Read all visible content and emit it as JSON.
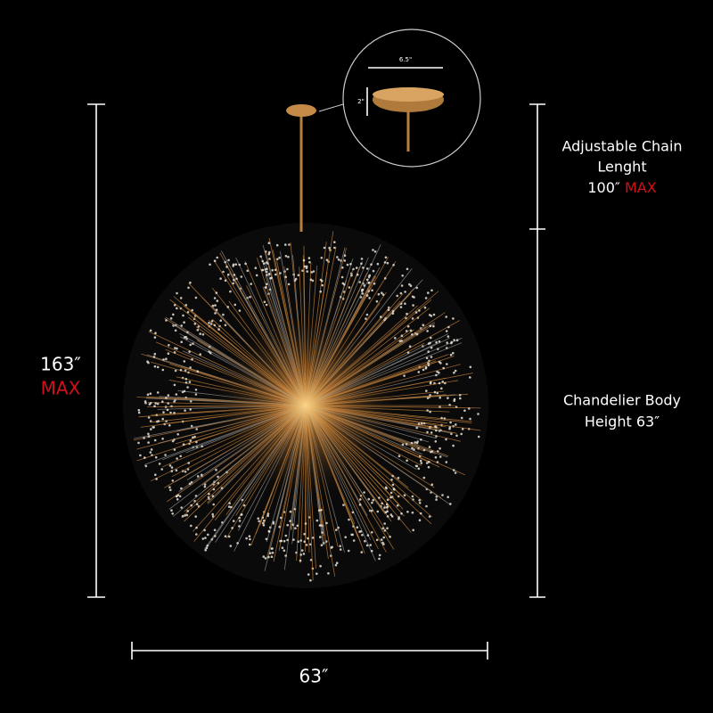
{
  "total_height": {
    "value": "163″",
    "note": "MAX"
  },
  "chain": {
    "line1": "Adjustable Chain",
    "line2": "Lenght",
    "value": "100″",
    "note": "MAX"
  },
  "body": {
    "line1": "Chandelier Body",
    "line2": "Height 63″"
  },
  "width": "63″",
  "inset": {
    "width": "6.5\"",
    "height": "2\""
  }
}
